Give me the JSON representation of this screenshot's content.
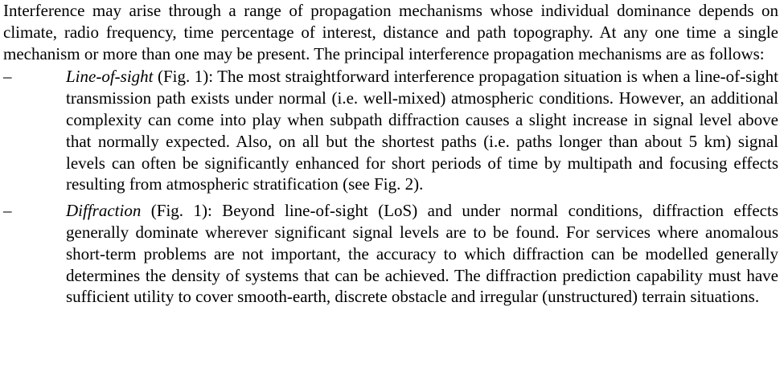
{
  "intro": "Interference may arise through a range of propagation mechanisms whose individual dominance depends on climate, radio frequency, time percentage of interest, distance and path topography. At any one time a single mechanism or more than one may be present. The principal interference propagation mechanisms are as follows:",
  "items": [
    {
      "dash": "–",
      "term": "Line-of-sight",
      "text": " (Fig. 1): The most straightforward interference propagation situation is when a line-of-sight transmission path exists under normal (i.e. well-mixed) atmospheric conditions. However, an additional complexity can come into play when subpath diffraction causes a slight increase in signal level above that normally expected. Also, on all but the shortest paths (i.e. paths longer than about 5 km) signal levels can often be significantly enhanced for short periods of time by multipath and focusing effects resulting from atmospheric stratification (see Fig. 2)."
    },
    {
      "dash": "–",
      "term": "Diffraction",
      "text": " (Fig. 1): Beyond line-of-sight (LoS) and under normal conditions, diffraction effects generally dominate wherever significant signal levels are to be found. For services where anomalous short-term problems are not important, the accuracy to which diffraction can be modelled generally determines the density of systems that can be achieved. The diffraction prediction capability must have sufficient utility to cover smooth-earth, discrete obstacle and irregular (unstructured) terrain situations."
    }
  ]
}
